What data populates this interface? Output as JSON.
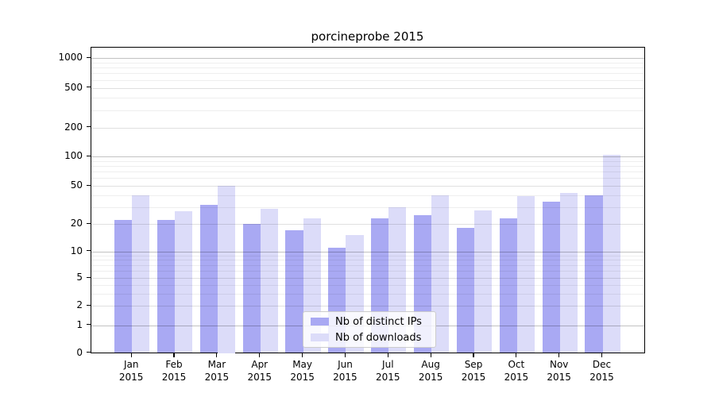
{
  "chart_data": {
    "type": "bar",
    "title": "porcineprobe 2015",
    "categories": [
      "Jan",
      "Feb",
      "Mar",
      "Apr",
      "May",
      "Jun",
      "Jul",
      "Aug",
      "Sep",
      "Oct",
      "Nov",
      "Dec"
    ],
    "category_year": "2015",
    "series": [
      {
        "name": "Nb of distinct IPs",
        "color": "#a9a9f3",
        "values": [
          22,
          22,
          32,
          20,
          17,
          11,
          23,
          25,
          18,
          23,
          34,
          40
        ]
      },
      {
        "name": "Nb of downloads",
        "color": "#dcdcf9",
        "values": [
          40,
          27,
          50,
          29,
          23,
          15,
          30,
          40,
          28,
          39,
          42,
          105
        ]
      }
    ],
    "y_axis": {
      "scale": "log-like",
      "ticks": [
        0,
        1,
        2,
        5,
        10,
        20,
        50,
        100,
        200,
        500,
        1000
      ],
      "range": [
        0,
        1000
      ],
      "major_gridlines": [
        1,
        10,
        100,
        1000
      ],
      "mid_gridlines": [
        2,
        5,
        20,
        50,
        200,
        500
      ],
      "minor_gridlines": [
        3,
        4,
        6,
        7,
        8,
        9,
        30,
        40,
        60,
        70,
        80,
        90,
        300,
        400,
        600,
        700,
        800,
        900
      ]
    },
    "legend": {
      "position": "bottom-center-inside"
    },
    "grid": true
  }
}
